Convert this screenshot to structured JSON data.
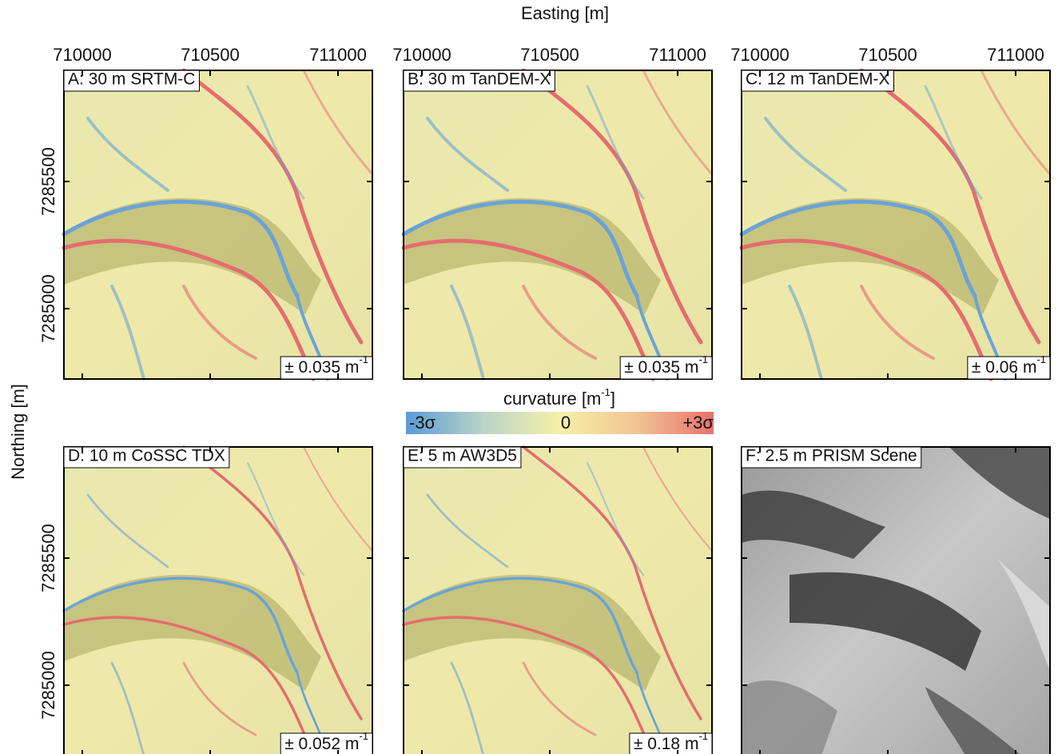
{
  "x_axis": {
    "label": "Easting [m]",
    "ticks": [
      710000,
      710500,
      711000
    ]
  },
  "y_axis": {
    "label": "Northing [m]",
    "ticks": [
      7285500,
      7285000
    ]
  },
  "colorbar": {
    "title": "curvature [m",
    "title_sup": "-1",
    "title_end": "]",
    "labels": [
      "-3σ",
      "0",
      "+3σ"
    ]
  },
  "panels": [
    {
      "title": "A: 30 m SRTM-C",
      "scale": {
        "text": "± 0.035 m",
        "sup": "-1"
      }
    },
    {
      "title": "B: 30 m TanDEM-X",
      "scale": {
        "text": "± 0.035 m",
        "sup": "-1"
      }
    },
    {
      "title": "C: 12 m TanDEM-X",
      "scale": {
        "text": "± 0.06 m",
        "sup": "-1"
      }
    },
    {
      "title": "D: 10 m CoSSC TDX",
      "scale": {
        "text": "± 0.052 m",
        "sup": "-1"
      }
    },
    {
      "title": "E: 5 m AW3D5",
      "scale": {
        "text": "± 0.18 m",
        "sup": "-1"
      }
    },
    {
      "title": "F: 2.5 m PRISM Scene"
    }
  ]
}
